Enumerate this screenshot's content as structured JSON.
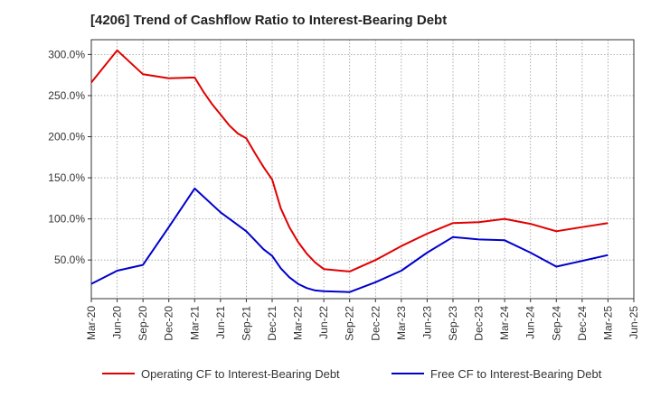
{
  "chart_data": {
    "type": "line",
    "title": "[4206]  Trend of Cashflow Ratio to Interest-Bearing Debt",
    "xlabel": "",
    "ylabel": "",
    "x_ticks": [
      "Mar-20",
      "Jun-20",
      "Sep-20",
      "Dec-20",
      "Mar-21",
      "Jun-21",
      "Sep-21",
      "Dec-21",
      "Mar-22",
      "Jun-22",
      "Sep-22",
      "Dec-22",
      "Mar-23",
      "Jun-23",
      "Sep-23",
      "Dec-23",
      "Mar-24",
      "Jun-24",
      "Sep-24",
      "Dec-24",
      "Mar-25",
      "Jun-25"
    ],
    "y_ticks": [
      50,
      100,
      150,
      200,
      250,
      300
    ],
    "y_tick_labels": [
      "50.0%",
      "100.0%",
      "150.0%",
      "200.0%",
      "250.0%",
      "300.0%"
    ],
    "ylim": [
      3,
      318
    ],
    "grid": true,
    "legend_position": "bottom",
    "series": [
      {
        "name": "Operating CF to Interest-Bearing Debt",
        "color": "#e00000",
        "points": [
          [
            "Mar-20",
            266
          ],
          [
            "Jun-20",
            305
          ],
          [
            "Sep-20",
            276
          ],
          [
            "Dec-20",
            271
          ],
          [
            "Mar-21",
            272
          ],
          [
            "Apr-21",
            255
          ],
          [
            "May-21",
            240
          ],
          [
            "Jun-21",
            227
          ],
          [
            "Jul-21",
            214
          ],
          [
            "Aug-21",
            204
          ],
          [
            "Sep-21",
            198
          ],
          [
            "Oct-21",
            180
          ],
          [
            "Nov-21",
            163
          ],
          [
            "Dec-21",
            148
          ],
          [
            "Jan-22",
            113
          ],
          [
            "Feb-22",
            90
          ],
          [
            "Mar-22",
            72
          ],
          [
            "Apr-22",
            58
          ],
          [
            "May-22",
            47
          ],
          [
            "Jun-22",
            39
          ],
          [
            "Sep-22",
            36
          ],
          [
            "Dec-22",
            50
          ],
          [
            "Mar-23",
            67
          ],
          [
            "Jun-23",
            82
          ],
          [
            "Sep-23",
            95
          ],
          [
            "Dec-23",
            96
          ],
          [
            "Mar-24",
            100
          ],
          [
            "Jun-24",
            94
          ],
          [
            "Sep-24",
            85
          ],
          [
            "Dec-24",
            90
          ],
          [
            "Mar-25",
            95
          ]
        ]
      },
      {
        "name": "Free CF to Interest-Bearing Debt",
        "color": "#0000cc",
        "points": [
          [
            "Mar-20",
            21
          ],
          [
            "Jun-20",
            37
          ],
          [
            "Sep-20",
            44
          ],
          [
            "Dec-20",
            90
          ],
          [
            "Mar-21",
            137
          ],
          [
            "Jun-21",
            108
          ],
          [
            "Sep-21",
            85
          ],
          [
            "Oct-21",
            74
          ],
          [
            "Nov-21",
            63
          ],
          [
            "Dec-21",
            55
          ],
          [
            "Jan-22",
            40
          ],
          [
            "Feb-22",
            29
          ],
          [
            "Mar-22",
            21
          ],
          [
            "Apr-22",
            16
          ],
          [
            "May-22",
            13
          ],
          [
            "Jun-22",
            12
          ],
          [
            "Sep-22",
            11
          ],
          [
            "Dec-22",
            23
          ],
          [
            "Mar-23",
            37
          ],
          [
            "Jun-23",
            59
          ],
          [
            "Sep-23",
            78
          ],
          [
            "Dec-23",
            75
          ],
          [
            "Mar-24",
            74
          ],
          [
            "Jun-24",
            59
          ],
          [
            "Sep-24",
            42
          ],
          [
            "Dec-24",
            49
          ],
          [
            "Mar-25",
            56
          ]
        ]
      }
    ]
  }
}
